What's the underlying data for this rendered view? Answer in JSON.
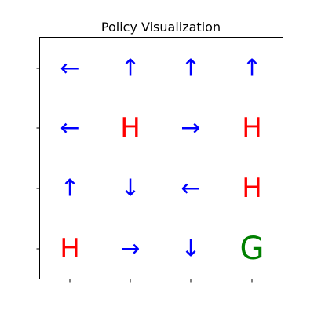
{
  "chart_data": {
    "type": "table",
    "title": "Policy Visualization",
    "rows": 4,
    "cols": 4,
    "grid": [
      [
        "←",
        "↑",
        "↑",
        "↑"
      ],
      [
        "←",
        "H",
        "→",
        "H"
      ],
      [
        "↑",
        "↓",
        "←",
        "H"
      ],
      [
        "H",
        "→",
        "↓",
        "G"
      ]
    ],
    "colors": {
      "arrow": "#0000ff",
      "hole": "#ff0000",
      "goal": "#008000"
    }
  }
}
